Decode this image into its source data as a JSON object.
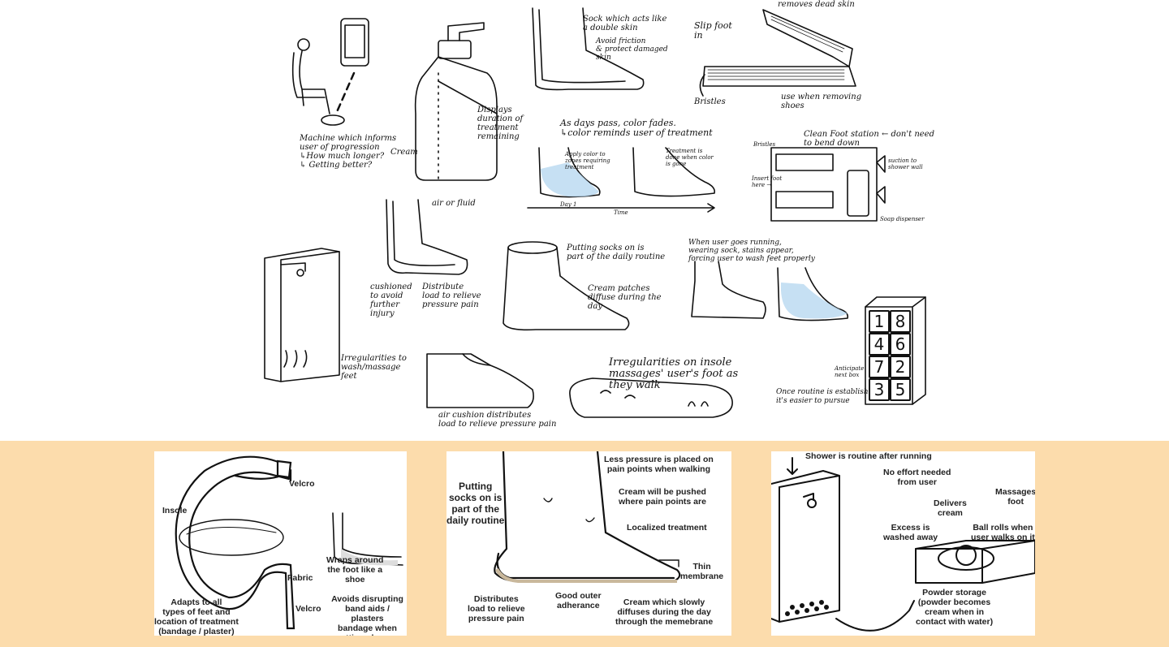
{
  "sketches": {
    "machine": "Machine which informs\nuser of progression\n↳How much longer?\n↳ Getting better?",
    "bottle_display": "Displays\nduration of\ntreatment\nremaining",
    "bottle_cream": "Cream",
    "sock_title": "Sock which acts like\na double skin",
    "sock_sub": "Avoid friction\n& protect damaged\nskin",
    "slip_remove": "removes dead skin",
    "slip_in": "Slip foot\nin",
    "slip_bristles": "Bristles",
    "slip_use": "use when removing\nshoes",
    "color_title": "As days pass, color fades.\n↳color reminds user of treatment",
    "color_apply": "Apply color to\nzones requiring\ntreatment",
    "color_done": "Treatment is\ndone when color\nis gone",
    "color_day": "Day 1",
    "color_time": "Time",
    "station_title": "Clean Foot station ← don't need\nto bend down",
    "station_bristles": "Bristles",
    "station_suction": "suction to\nshower wall",
    "station_insert": "Insert foot\nhere →",
    "station_soap": "Soap dispenser",
    "fluid_label": "air or fluid",
    "fluid_cushion": "cushioned\nto avoid\nfurther\ninjury",
    "fluid_distribute": "Distribute\nload to relieve\npressure pain",
    "socks_routine": "Putting socks on is\npart of the daily routine",
    "socks_cream": "Cream patches\ndiffuse during the\nday",
    "running_title": "When user goes running,\nwearing sock, stains appear,\nforcing user to wash feet properly",
    "shower_irreg": "Irregularities to\nwash/massage\nfeet",
    "shoe_air": "air cushion distributes\nload to relieve pressure pain",
    "insole_title": "Irregularities on insole\nmassages' user's foot as\nthey walk",
    "calendar_anticipate": "Anticipate\nnext box",
    "calendar_routine": "Once routine is established,\nit's easier to pursue",
    "calendar_numbers": [
      "1",
      "8",
      "4",
      "6",
      "7",
      "2",
      "3",
      "5"
    ]
  },
  "panel1": {
    "velcro_top": "Velcro",
    "insole": "Insole",
    "fabric": "Fabric",
    "velcro_bottom": "Velcro",
    "wraps": "Wraps around\nthe foot like a\nshoe",
    "avoids": "Avoids disrupting\nband aids / plasters\nbandage when\nputting shoe on",
    "adapts": "Adapts to all\ntypes of feet and\nlocation of treatment\n(bandage / plaster)"
  },
  "panel2": {
    "putting": "Putting\nsocks on is\npart of the\ndaily routine",
    "less_pressure": "Less pressure is placed on\npain points when walking",
    "cream_pushed": "Cream will be pushed\nwhere pain points are",
    "localized": "Localized treatment",
    "thin": "Thin\nmembrane",
    "distributes": "Distributes\nload to relieve\npressure pain",
    "outer": "Good outer\nadherance",
    "diffuses": "Cream which slowly\ndiffuses during the day\nthrough the memebrane"
  },
  "panel3": {
    "shower": "Shower is routine after running",
    "no_effort": "No effort needed\nfrom user",
    "massages": "Massages\nfoot",
    "delivers": "Delivers\ncream",
    "excess": "Excess is\nwashed away",
    "ball": "Ball rolls when\nuser walks on it",
    "powder": "Powder storage\n(powder becomes\ncream when in\ncontact with water)"
  },
  "colors": {
    "band": "#fcdcac",
    "ink": "#111111",
    "blue_tint": "#b8d8f0"
  }
}
